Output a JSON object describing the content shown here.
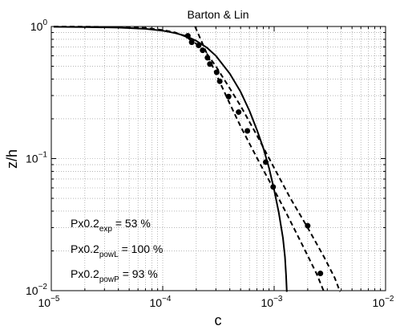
{
  "chart_data": {
    "type": "scatter",
    "title": "Barton & Lin",
    "xlabel": "c",
    "ylabel": "z/h",
    "xscale": "log",
    "yscale": "log",
    "xlim": [
      1e-05,
      0.01
    ],
    "ylim": [
      0.01,
      1
    ],
    "grid": true,
    "x_ticks": [
      {
        "value": 1e-05,
        "base": "10",
        "exp": "−5"
      },
      {
        "value": 0.0001,
        "base": "10",
        "exp": "−4"
      },
      {
        "value": 0.001,
        "base": "10",
        "exp": "−3"
      },
      {
        "value": 0.01,
        "base": "10",
        "exp": "−2"
      }
    ],
    "y_ticks": [
      {
        "value": 0.01,
        "base": "10",
        "exp": "−2"
      },
      {
        "value": 0.1,
        "base": "10",
        "exp": "−1"
      },
      {
        "value": 1,
        "base": "10",
        "exp": "0"
      }
    ],
    "points": [
      {
        "x": 0.000168,
        "y": 0.85
      },
      {
        "x": 0.000182,
        "y": 0.76
      },
      {
        "x": 0.00021,
        "y": 0.72
      },
      {
        "x": 0.000228,
        "y": 0.66
      },
      {
        "x": 0.000252,
        "y": 0.58
      },
      {
        "x": 0.000265,
        "y": 0.52
      },
      {
        "x": 0.000305,
        "y": 0.45
      },
      {
        "x": 0.000325,
        "y": 0.385
      },
      {
        "x": 0.00039,
        "y": 0.295
      },
      {
        "x": 0.00048,
        "y": 0.225
      },
      {
        "x": 0.000575,
        "y": 0.162
      },
      {
        "x": 0.00084,
        "y": 0.094
      },
      {
        "x": 0.00098,
        "y": 0.061
      },
      {
        "x": 0.002,
        "y": 0.031
      },
      {
        "x": 0.0026,
        "y": 0.0135
      }
    ],
    "curves": [
      {
        "style": "solid",
        "x": [
          1.05e-05,
          2e-05,
          4e-05,
          7e-05,
          0.0001,
          0.00013,
          0.00016,
          0.0002,
          0.00025,
          0.0003,
          0.0004,
          0.0005,
          0.0006,
          0.0007,
          0.0008,
          0.0009,
          0.001,
          0.0011,
          0.0012,
          0.00125,
          0.00128,
          0.0013
        ],
        "y": [
          0.995,
          0.99,
          0.98,
          0.96,
          0.93,
          0.89,
          0.85,
          0.78,
          0.69,
          0.6,
          0.44,
          0.32,
          0.23,
          0.165,
          0.12,
          0.085,
          0.058,
          0.039,
          0.025,
          0.018,
          0.013,
          0.0098
        ]
      },
      {
        "style": "dashed",
        "x": [
          1.05e-05,
          2e-05,
          4e-05,
          7e-05,
          0.0001,
          0.00013,
          0.00016,
          0.0002,
          0.00025,
          0.0003,
          0.0004,
          0.0005,
          0.0007,
          0.001,
          0.0014,
          0.002,
          0.0028,
          0.0035,
          0.0039
        ],
        "y": [
          0.998,
          0.997,
          0.99,
          0.975,
          0.94,
          0.9,
          0.84,
          0.74,
          0.62,
          0.5,
          0.34,
          0.25,
          0.15,
          0.085,
          0.05,
          0.03,
          0.018,
          0.0125,
          0.0098
        ]
      },
      {
        "style": "dashed",
        "x": [
          0.000195,
          0.00025,
          0.0003,
          0.0004,
          0.0005,
          0.0006,
          0.0008,
          0.001,
          0.0013,
          0.0018,
          0.0024,
          0.0028
        ],
        "y": [
          1.0,
          0.62,
          0.44,
          0.26,
          0.175,
          0.13,
          0.082,
          0.058,
          0.038,
          0.022,
          0.0135,
          0.0098
        ]
      }
    ],
    "annotations": [
      {
        "main": "Px0.2",
        "sub": "exp",
        "rest": " = 53 %"
      },
      {
        "main": "Px0.2",
        "sub": "powL",
        "rest": " = 100 %"
      },
      {
        "main": "Px0.2",
        "sub": "powP",
        "rest": " = 93 %"
      }
    ]
  }
}
